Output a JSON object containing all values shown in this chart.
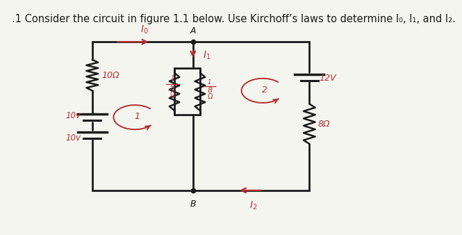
{
  "title": ".1 Consider the circuit in figure 1.1 below. Use Kirchoff’s laws to determine I₀, I₁, and I₂.",
  "title_fontsize": 10.5,
  "bg_color": "#f5f5f0",
  "line_color": "#1a1a1a",
  "red_color": "#b03030",
  "lw_wire": 2.0,
  "lw_resistor": 1.8,
  "lw_battery": 2.2
}
